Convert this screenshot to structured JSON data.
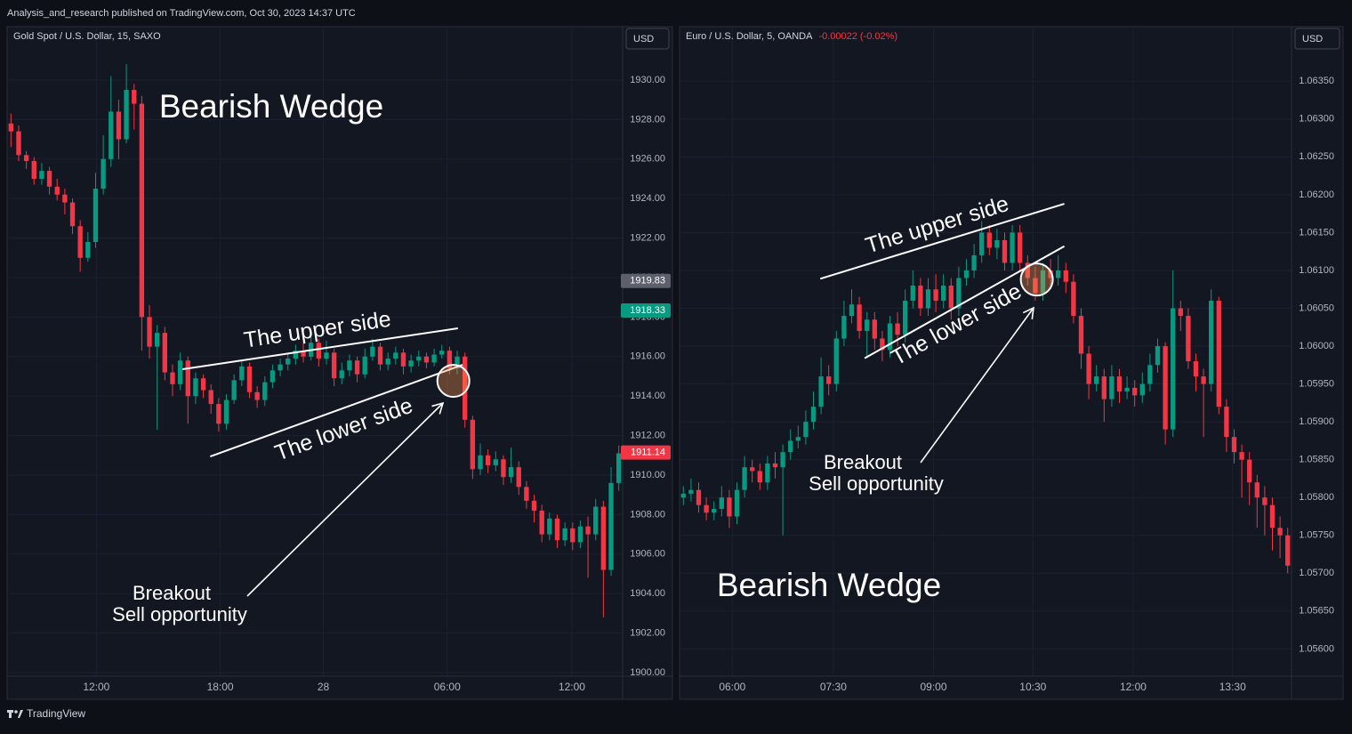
{
  "header": "Analysis_and_research published on TradingView.com, Oct 30, 2023 14:37 UTC",
  "footer": "TradingView",
  "chart_data": [
    {
      "type": "candlestick",
      "title": "Gold Spot / U.S. Dollar, 15, SAXO",
      "currency": "USD",
      "up_color": "#089981",
      "down_color": "#f23645",
      "xlim": [
        -0.5,
        79.5
      ],
      "xticks": [
        {
          "value": 11.1,
          "label": "12:00"
        },
        {
          "value": 27.2,
          "label": "18:00"
        },
        {
          "value": 40.6,
          "label": "28"
        },
        {
          "value": 56.7,
          "label": "06:00"
        },
        {
          "value": 72.9,
          "label": "12:00"
        }
      ],
      "ylim": [
        1899.82,
        1932.7
      ],
      "yticks": [
        {
          "value": 1900,
          "label": "1900.00"
        },
        {
          "value": 1902,
          "label": "1902.00"
        },
        {
          "value": 1904,
          "label": "1904.00"
        },
        {
          "value": 1906,
          "label": "1906.00"
        },
        {
          "value": 1908,
          "label": "1908.00"
        },
        {
          "value": 1910,
          "label": "1910.00"
        },
        {
          "value": 1912,
          "label": "1912.00"
        },
        {
          "value": 1914,
          "label": "1914.00"
        },
        {
          "value": 1916,
          "label": "1916.00"
        },
        {
          "value": 1918,
          "label": "1918.00"
        },
        {
          "value": 1920,
          "label": "1920.00"
        },
        {
          "value": 1922,
          "label": "1922.00"
        },
        {
          "value": 1924,
          "label": "1924.00"
        },
        {
          "value": 1926,
          "label": "1926.00"
        },
        {
          "value": 1928,
          "label": "1928.00"
        },
        {
          "value": 1930,
          "label": "1930.00"
        }
      ],
      "open": [
        1927.8,
        1927.4,
        1926.2,
        1925.9,
        1925.0,
        1925.4,
        1924.6,
        1924.2,
        1923.8,
        1922.6,
        1921.0,
        1921.8,
        1924.5,
        1926.0,
        1928.4,
        1927.0,
        1929.5,
        1928.8,
        1918.0,
        1916.5,
        1917.2,
        1915.2,
        1914.6,
        1915.8,
        1914.0,
        1914.9,
        1914.3,
        1913.6,
        1912.6,
        1913.8,
        1914.8,
        1915.5,
        1914.2,
        1913.8,
        1914.7,
        1915.3,
        1915.6,
        1915.9,
        1916.3,
        1916.0,
        1916.7,
        1915.9,
        1916.2,
        1914.9,
        1915.3,
        1915.8,
        1915.1,
        1916.0,
        1916.5,
        1915.6,
        1915.9,
        1916.2,
        1915.5,
        1915.8,
        1916.0,
        1915.7,
        1916.1,
        1916.3,
        1915.4,
        1916.0,
        1912.8,
        1910.3,
        1911.0,
        1910.5,
        1910.8,
        1909.9,
        1910.4,
        1909.4,
        1908.7,
        1908.2,
        1907.0,
        1907.8,
        1906.7,
        1907.3,
        1906.6,
        1907.4,
        1907.0,
        1908.4,
        1905.2,
        1909.6
      ],
      "high": [
        1928.3,
        1927.7,
        1926.4,
        1926.1,
        1925.8,
        1925.6,
        1925.0,
        1924.5,
        1924.0,
        1922.9,
        1922.3,
        1925.3,
        1927.2,
        1930.2,
        1929.0,
        1930.8,
        1929.8,
        1929.2,
        1918.6,
        1917.6,
        1917.5,
        1915.6,
        1916.2,
        1916.0,
        1915.2,
        1915.1,
        1914.6,
        1913.9,
        1914.1,
        1915.1,
        1915.8,
        1915.7,
        1914.5,
        1915.0,
        1915.6,
        1915.9,
        1916.2,
        1916.6,
        1916.7,
        1917.0,
        1916.9,
        1916.8,
        1916.4,
        1915.7,
        1916.1,
        1916.0,
        1916.4,
        1916.9,
        1916.7,
        1916.2,
        1916.5,
        1916.4,
        1916.1,
        1916.3,
        1916.2,
        1916.4,
        1916.6,
        1916.5,
        1916.3,
        1916.2,
        1913.0,
        1911.6,
        1911.3,
        1911.2,
        1911.0,
        1911.4,
        1910.7,
        1909.7,
        1909.0,
        1908.5,
        1908.1,
        1908.0,
        1907.6,
        1907.6,
        1907.7,
        1907.9,
        1908.8,
        1908.7,
        1910.4,
        1911.5
      ],
      "low": [
        1926.6,
        1925.9,
        1925.5,
        1924.7,
        1924.7,
        1924.2,
        1923.9,
        1923.2,
        1922.2,
        1920.3,
        1920.8,
        1921.5,
        1924.2,
        1925.6,
        1926.0,
        1926.8,
        1927.5,
        1916.3,
        1915.9,
        1912.3,
        1914.8,
        1914.0,
        1914.3,
        1912.6,
        1913.6,
        1913.9,
        1913.1,
        1912.2,
        1912.3,
        1913.6,
        1914.5,
        1913.9,
        1913.4,
        1913.5,
        1914.4,
        1915.0,
        1915.3,
        1915.6,
        1915.7,
        1915.8,
        1915.5,
        1915.6,
        1914.5,
        1914.6,
        1915.0,
        1914.7,
        1914.9,
        1915.8,
        1915.3,
        1915.3,
        1915.6,
        1915.1,
        1915.2,
        1915.5,
        1915.4,
        1915.5,
        1915.9,
        1915.1,
        1915.1,
        1912.4,
        1909.8,
        1910.0,
        1910.1,
        1910.2,
        1909.5,
        1909.6,
        1909.0,
        1908.3,
        1907.6,
        1906.6,
        1906.7,
        1906.3,
        1906.4,
        1906.2,
        1906.3,
        1904.8,
        1906.7,
        1902.8,
        1904.9,
        1909.2
      ],
      "close": [
        1927.4,
        1926.2,
        1925.9,
        1925.0,
        1925.4,
        1924.6,
        1924.2,
        1923.8,
        1922.6,
        1921.0,
        1921.8,
        1924.5,
        1926.0,
        1928.4,
        1927.0,
        1929.5,
        1928.8,
        1918.0,
        1916.5,
        1917.2,
        1915.2,
        1914.6,
        1915.8,
        1914.0,
        1914.9,
        1914.3,
        1913.6,
        1912.6,
        1913.8,
        1914.8,
        1915.5,
        1914.2,
        1913.8,
        1914.7,
        1915.3,
        1915.6,
        1915.9,
        1916.3,
        1916.0,
        1916.7,
        1915.9,
        1916.2,
        1914.9,
        1915.3,
        1915.8,
        1915.1,
        1916.0,
        1916.5,
        1915.6,
        1915.9,
        1916.2,
        1915.5,
        1915.8,
        1916.0,
        1915.7,
        1916.1,
        1916.3,
        1915.4,
        1916.0,
        1912.8,
        1910.3,
        1911.0,
        1910.5,
        1910.8,
        1909.9,
        1910.4,
        1909.4,
        1908.7,
        1908.2,
        1907.0,
        1907.8,
        1906.7,
        1907.3,
        1906.6,
        1907.4,
        1907.0,
        1908.4,
        1905.2,
        1909.6,
        1911.1
      ],
      "price_labels": [
        {
          "value": 1919.83,
          "color": "#5d606b"
        },
        {
          "value": 1918.33,
          "color": "#089981"
        },
        {
          "value": 1911.14,
          "color": "#f23645"
        }
      ],
      "trendlines": [
        {
          "x": [
            22.3,
            58.1
          ],
          "y": [
            1915.36,
            1917.43
          ]
        },
        {
          "x": [
            25.9,
            58.7
          ],
          "y": [
            1910.94,
            1915.58
          ]
        }
      ],
      "breakout": {
        "x": 57.5,
        "y": 1914.77
      },
      "annotations": {
        "title": "Bearish Wedge",
        "upper": "The upper side",
        "lower": "The lower side",
        "breakout": "Breakout",
        "sell": "Sell opportunity"
      }
    },
    {
      "type": "candlestick",
      "title": "Euro / U.S. Dollar, 5, OANDA",
      "change": "-0.00022 (-0.02%)",
      "currency": "USD",
      "up_color": "#089981",
      "down_color": "#f23645",
      "xlim": [
        -0.5,
        79.5
      ],
      "xticks": [
        {
          "value": 6.4,
          "label": "06:00"
        },
        {
          "value": 19.6,
          "label": "07:30"
        },
        {
          "value": 32.7,
          "label": "09:00"
        },
        {
          "value": 45.7,
          "label": "10:30"
        },
        {
          "value": 58.8,
          "label": "12:00"
        },
        {
          "value": 71.8,
          "label": "13:30"
        }
      ],
      "ylim": [
        1.05564,
        1.06422
      ],
      "yticks": [
        {
          "value": 1.056,
          "label": "1.05600"
        },
        {
          "value": 1.0565,
          "label": "1.05650"
        },
        {
          "value": 1.057,
          "label": "1.05700"
        },
        {
          "value": 1.0575,
          "label": "1.05750"
        },
        {
          "value": 1.058,
          "label": "1.05800"
        },
        {
          "value": 1.0585,
          "label": "1.05850"
        },
        {
          "value": 1.059,
          "label": "1.05900"
        },
        {
          "value": 1.0595,
          "label": "1.05950"
        },
        {
          "value": 1.06,
          "label": "1.06000"
        },
        {
          "value": 1.0605,
          "label": "1.06050"
        },
        {
          "value": 1.061,
          "label": "1.06100"
        },
        {
          "value": 1.0615,
          "label": "1.06150"
        },
        {
          "value": 1.062,
          "label": "1.06200"
        },
        {
          "value": 1.0625,
          "label": "1.06250"
        },
        {
          "value": 1.063,
          "label": "1.06300"
        },
        {
          "value": 1.0635,
          "label": "1.06350"
        }
      ],
      "open": [
        1.058,
        1.05805,
        1.0581,
        1.0579,
        1.0578,
        1.05785,
        1.058,
        1.05775,
        1.0581,
        1.0584,
        1.05835,
        1.0582,
        1.05845,
        1.0584,
        1.0586,
        1.05875,
        1.0588,
        1.059,
        1.0592,
        1.0596,
        1.0595,
        1.0601,
        1.0604,
        1.06055,
        1.0602,
        1.06035,
        1.0601,
        1.05995,
        1.0603,
        1.06015,
        1.0606,
        1.0608,
        1.0605,
        1.06075,
        1.0606,
        1.0608,
        1.0605,
        1.0609,
        1.061,
        1.0612,
        1.0615,
        1.0613,
        1.0614,
        1.0611,
        1.0615,
        1.0611,
        1.0609,
        1.0607,
        1.061,
        1.0609,
        1.061,
        1.06085,
        1.0604,
        1.0599,
        1.0595,
        1.0596,
        1.0593,
        1.0596,
        1.0594,
        1.05945,
        1.05935,
        1.0595,
        1.05975,
        1.06,
        1.0589,
        1.0605,
        1.0604,
        1.0598,
        1.0596,
        1.0595,
        1.0606,
        1.0592,
        1.0588,
        1.0586,
        1.0585,
        1.0582,
        1.058,
        1.0579,
        1.0576,
        1.0575
      ],
      "high": [
        1.05815,
        1.05825,
        1.0582,
        1.058,
        1.05795,
        1.05815,
        1.0581,
        1.0582,
        1.05855,
        1.0585,
        1.05845,
        1.05855,
        1.0586,
        1.0587,
        1.0589,
        1.05895,
        1.05915,
        1.0594,
        1.05985,
        1.05975,
        1.0602,
        1.0606,
        1.06075,
        1.06065,
        1.06045,
        1.06045,
        1.0602,
        1.0604,
        1.06045,
        1.06075,
        1.061,
        1.0609,
        1.0609,
        1.06095,
        1.06095,
        1.0609,
        1.06105,
        1.06115,
        1.06135,
        1.06165,
        1.0616,
        1.06155,
        1.0615,
        1.0616,
        1.0616,
        1.0612,
        1.06105,
        1.0611,
        1.06115,
        1.0612,
        1.0611,
        1.06095,
        1.0605,
        1.06,
        1.05975,
        1.0597,
        1.05975,
        1.0597,
        1.0596,
        1.05955,
        1.05965,
        1.0599,
        1.0601,
        1.06005,
        1.061,
        1.0606,
        1.0605,
        1.0599,
        1.0597,
        1.06075,
        1.06065,
        1.0593,
        1.0589,
        1.0587,
        1.0586,
        1.0583,
        1.05815,
        1.058,
        1.05775,
        1.0576
      ],
      "low": [
        1.0579,
        1.05795,
        1.0578,
        1.0577,
        1.0577,
        1.05775,
        1.0576,
        1.05765,
        1.058,
        1.0582,
        1.0581,
        1.0581,
        1.05825,
        1.0575,
        1.0585,
        1.05865,
        1.0587,
        1.0589,
        1.0591,
        1.05935,
        1.0594,
        1.06,
        1.0603,
        1.0601,
        1.05985,
        1.05995,
        1.0598,
        1.05985,
        1.06,
        1.06005,
        1.0605,
        1.0604,
        1.0604,
        1.06045,
        1.0605,
        1.06035,
        1.0604,
        1.0608,
        1.0609,
        1.0611,
        1.0612,
        1.06115,
        1.061,
        1.061,
        1.061,
        1.0608,
        1.0606,
        1.0606,
        1.06075,
        1.0608,
        1.0607,
        1.0603,
        1.0597,
        1.0593,
        1.0594,
        1.059,
        1.0592,
        1.05925,
        1.0593,
        1.0592,
        1.05925,
        1.0594,
        1.05965,
        1.0587,
        1.0588,
        1.0602,
        1.0597,
        1.0594,
        1.0588,
        1.0594,
        1.0591,
        1.0586,
        1.05845,
        1.058,
        1.0579,
        1.0576,
        1.0575,
        1.0573,
        1.0572,
        1.057
      ],
      "close": [
        1.05805,
        1.0581,
        1.0579,
        1.0578,
        1.05785,
        1.058,
        1.05775,
        1.0581,
        1.0584,
        1.05835,
        1.0582,
        1.05845,
        1.0584,
        1.0586,
        1.05875,
        1.0588,
        1.059,
        1.0592,
        1.0596,
        1.0595,
        1.0601,
        1.0604,
        1.06055,
        1.0602,
        1.06035,
        1.0601,
        1.05995,
        1.0603,
        1.06015,
        1.0606,
        1.0608,
        1.0605,
        1.06075,
        1.0606,
        1.0608,
        1.0605,
        1.0609,
        1.061,
        1.0612,
        1.0615,
        1.0613,
        1.0614,
        1.0611,
        1.0615,
        1.0611,
        1.0609,
        1.0607,
        1.061,
        1.0609,
        1.061,
        1.06085,
        1.0604,
        1.0599,
        1.0595,
        1.0596,
        1.0593,
        1.0596,
        1.0594,
        1.05945,
        1.05935,
        1.0595,
        1.05975,
        1.06,
        1.0589,
        1.0605,
        1.0604,
        1.0598,
        1.0596,
        1.0595,
        1.0606,
        1.0592,
        1.0588,
        1.0586,
        1.0585,
        1.0582,
        1.058,
        1.0579,
        1.0576,
        1.0575,
        1.0571
      ],
      "trendlines": [
        {
          "x": [
            17.9,
            49.8
          ],
          "y": [
            1.06089,
            1.06188
          ]
        },
        {
          "x": [
            23.7,
            49.8
          ],
          "y": [
            1.05984,
            1.06132
          ]
        }
      ],
      "breakout": {
        "x": 46.2,
        "y": 1.06088
      },
      "annotations": {
        "title": "Bearish Wedge",
        "upper": "The upper side",
        "lower": "The lower side",
        "breakout": "Breakout",
        "sell": "Sell opportunity"
      }
    }
  ]
}
